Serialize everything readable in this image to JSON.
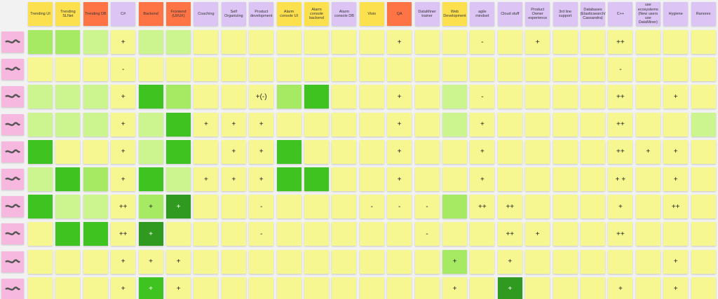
{
  "header": {
    "columns": [
      {
        "label": "Trending UI",
        "color": "#fde04e"
      },
      {
        "label": "Trending SLNet",
        "color": "#fde04e"
      },
      {
        "label": "Trending DB",
        "color": "#ff7445"
      },
      {
        "label": "C#",
        "color": "#dcc4f5"
      },
      {
        "label": "Backend",
        "color": "#ff7445"
      },
      {
        "label": "Frontend (UI/UX)",
        "color": "#ff7445"
      },
      {
        "label": "Coaching",
        "color": "#dcc4f5"
      },
      {
        "label": "Self Organizing",
        "color": "#dcc4f5"
      },
      {
        "label": "Product development",
        "color": "#dcc4f5"
      },
      {
        "label": "Alarm console UI",
        "color": "#fde04e"
      },
      {
        "label": "Alarm console backend",
        "color": "#fde04e"
      },
      {
        "label": "Alarm console DB",
        "color": "#dcc4f5"
      },
      {
        "label": "Visio",
        "color": "#fde04e"
      },
      {
        "label": "QA",
        "color": "#ff7445"
      },
      {
        "label": "DataMiner trainer",
        "color": "#dcc4f5"
      },
      {
        "label": "Web Development",
        "color": "#fde04e"
      },
      {
        "label": "agile mindset",
        "color": "#dcc4f5"
      },
      {
        "label": "Cloud stuff",
        "color": "#dcc4f5"
      },
      {
        "label": "Product Owner experience",
        "color": "#dcc4f5"
      },
      {
        "label": "3rd line support",
        "color": "#dcc4f5"
      },
      {
        "label": "Databases (Elasticsearch/ Cassandra)",
        "color": "#dcc4f5"
      },
      {
        "label": "C++",
        "color": "#dcc4f5"
      },
      {
        "label": "use ecosystems (New users use DataMiner)",
        "color": "#dcc4f5"
      },
      {
        "label": "Hygiene",
        "color": "#dcc4f5"
      },
      {
        "label": "Ranorex",
        "color": "#dcc4f5"
      }
    ]
  },
  "table": {
    "rows": [
      [
        {
          "color": "#a6ea63"
        },
        {
          "color": "#a6ea63"
        },
        {
          "color": "#cdf58f"
        },
        {
          "color": "#f6f790",
          "text": "+"
        },
        {
          "color": "#cdf58f"
        },
        {
          "color": "#cdf58f"
        },
        {
          "color": "#f6f790"
        },
        {
          "color": "#f6f790"
        },
        {
          "color": "#f6f790"
        },
        {
          "color": "#f6f790"
        },
        {
          "color": "#f6f790"
        },
        {
          "color": "#f6f790"
        },
        {
          "color": "#f6f790"
        },
        {
          "color": "#f6f790",
          "text": "+"
        },
        {
          "color": "#f6f790"
        },
        {
          "color": "#f6f790"
        },
        {
          "color": "#f6f790",
          "text": "-"
        },
        {
          "color": "#f6f790"
        },
        {
          "color": "#f6f790",
          "text": "+"
        },
        {
          "color": "#f6f790"
        },
        {
          "color": "#f6f790"
        },
        {
          "color": "#f6f790",
          "text": "++"
        },
        {
          "color": "#f6f790"
        },
        {
          "color": "#f6f790"
        },
        {
          "color": "#f6f790"
        }
      ],
      [
        {
          "color": "#f6f790"
        },
        {
          "color": "#f6f790"
        },
        {
          "color": "#f6f790"
        },
        {
          "color": "#f6f790",
          "text": "-"
        },
        {
          "color": "#f6f790"
        },
        {
          "color": "#f6f790"
        },
        {
          "color": "#f6f790"
        },
        {
          "color": "#f6f790"
        },
        {
          "color": "#f6f790"
        },
        {
          "color": "#f6f790"
        },
        {
          "color": "#f6f790"
        },
        {
          "color": "#f6f790"
        },
        {
          "color": "#f6f790"
        },
        {
          "color": "#f6f790"
        },
        {
          "color": "#f6f790"
        },
        {
          "color": "#f6f790"
        },
        {
          "color": "#f6f790"
        },
        {
          "color": "#f6f790"
        },
        {
          "color": "#f6f790"
        },
        {
          "color": "#f6f790"
        },
        {
          "color": "#f6f790"
        },
        {
          "color": "#f6f790",
          "text": "-"
        },
        {
          "color": "#f6f790"
        },
        {
          "color": "#f6f790"
        },
        {
          "color": "#f6f790"
        }
      ],
      [
        {
          "color": "#cdf58f"
        },
        {
          "color": "#cdf58f"
        },
        {
          "color": "#cdf58f"
        },
        {
          "color": "#f6f790",
          "text": "+"
        },
        {
          "color": "#3ec320"
        },
        {
          "color": "#a6ea63"
        },
        {
          "color": "#f6f790"
        },
        {
          "color": "#f6f790"
        },
        {
          "color": "#f6f790",
          "text": "+(-)"
        },
        {
          "color": "#a6ea63"
        },
        {
          "color": "#3ec320"
        },
        {
          "color": "#f6f790"
        },
        {
          "color": "#f6f790"
        },
        {
          "color": "#f6f790",
          "text": "+"
        },
        {
          "color": "#f6f790"
        },
        {
          "color": "#cdf58f"
        },
        {
          "color": "#f6f790",
          "text": "-"
        },
        {
          "color": "#f6f790"
        },
        {
          "color": "#f6f790"
        },
        {
          "color": "#f6f790"
        },
        {
          "color": "#f6f790"
        },
        {
          "color": "#f6f790",
          "text": "++"
        },
        {
          "color": "#f6f790"
        },
        {
          "color": "#f6f790",
          "text": "+"
        },
        {
          "color": "#f6f790"
        }
      ],
      [
        {
          "color": "#cdf58f"
        },
        {
          "color": "#cdf58f"
        },
        {
          "color": "#cdf58f"
        },
        {
          "color": "#f6f790",
          "text": "+"
        },
        {
          "color": "#cdf58f"
        },
        {
          "color": "#3ec320"
        },
        {
          "color": "#f6f790",
          "text": "+"
        },
        {
          "color": "#f6f790",
          "text": "+"
        },
        {
          "color": "#f6f790",
          "text": "+"
        },
        {
          "color": "#f6f790"
        },
        {
          "color": "#f6f790"
        },
        {
          "color": "#f6f790"
        },
        {
          "color": "#f6f790"
        },
        {
          "color": "#f6f790",
          "text": "+"
        },
        {
          "color": "#f6f790"
        },
        {
          "color": "#cdf58f"
        },
        {
          "color": "#f6f790",
          "text": "+"
        },
        {
          "color": "#f6f790"
        },
        {
          "color": "#f6f790"
        },
        {
          "color": "#f6f790"
        },
        {
          "color": "#f6f790"
        },
        {
          "color": "#f6f790",
          "text": "++"
        },
        {
          "color": "#f6f790"
        },
        {
          "color": "#f6f790"
        },
        {
          "color": "#cdf58f"
        }
      ],
      [
        {
          "color": "#3ec320"
        },
        {
          "color": "#f6f790"
        },
        {
          "color": "#f6f790"
        },
        {
          "color": "#f6f790",
          "text": "+"
        },
        {
          "color": "#cdf58f"
        },
        {
          "color": "#3ec320"
        },
        {
          "color": "#f6f790"
        },
        {
          "color": "#f6f790",
          "text": "+"
        },
        {
          "color": "#f6f790",
          "text": "+"
        },
        {
          "color": "#3ec320"
        },
        {
          "color": "#f6f790"
        },
        {
          "color": "#f6f790"
        },
        {
          "color": "#f6f790"
        },
        {
          "color": "#f6f790",
          "text": "+"
        },
        {
          "color": "#f6f790"
        },
        {
          "color": "#f6f790"
        },
        {
          "color": "#f6f790",
          "text": "+"
        },
        {
          "color": "#f6f790"
        },
        {
          "color": "#f6f790"
        },
        {
          "color": "#f6f790"
        },
        {
          "color": "#f6f790"
        },
        {
          "color": "#f6f790",
          "text": "++"
        },
        {
          "color": "#f6f790",
          "text": "+"
        },
        {
          "color": "#f6f790",
          "text": "+"
        },
        {
          "color": "#f6f790"
        }
      ],
      [
        {
          "color": "#cdf58f"
        },
        {
          "color": "#3ec320"
        },
        {
          "color": "#a6ea63"
        },
        {
          "color": "#f6f790",
          "text": "+"
        },
        {
          "color": "#3ec320"
        },
        {
          "color": "#cdf58f"
        },
        {
          "color": "#f6f790",
          "text": "+"
        },
        {
          "color": "#f6f790",
          "text": "+"
        },
        {
          "color": "#f6f790",
          "text": "+"
        },
        {
          "color": "#3ec320"
        },
        {
          "color": "#3ec320"
        },
        {
          "color": "#f6f790"
        },
        {
          "color": "#f6f790"
        },
        {
          "color": "#f6f790",
          "text": "+"
        },
        {
          "color": "#f6f790"
        },
        {
          "color": "#f6f790"
        },
        {
          "color": "#f6f790",
          "text": "+"
        },
        {
          "color": "#f6f790"
        },
        {
          "color": "#f6f790"
        },
        {
          "color": "#f6f790"
        },
        {
          "color": "#f6f790"
        },
        {
          "color": "#f6f790",
          "text": "+ +"
        },
        {
          "color": "#f6f790"
        },
        {
          "color": "#f6f790",
          "text": "+"
        },
        {
          "color": "#f6f790"
        }
      ],
      [
        {
          "color": "#3ec320"
        },
        {
          "color": "#cdf58f"
        },
        {
          "color": "#cdf58f"
        },
        {
          "color": "#f6f790",
          "text": "++"
        },
        {
          "color": "#a6ea63",
          "text": "+"
        },
        {
          "color": "#2f9a1f",
          "text": "+"
        },
        {
          "color": "#f6f790"
        },
        {
          "color": "#f6f790"
        },
        {
          "color": "#f6f790",
          "text": "-"
        },
        {
          "color": "#f6f790"
        },
        {
          "color": "#f6f790"
        },
        {
          "color": "#f6f790"
        },
        {
          "color": "#f6f790",
          "text": "-"
        },
        {
          "color": "#f6f790",
          "text": "-"
        },
        {
          "color": "#f6f790",
          "text": "-"
        },
        {
          "color": "#a6ea63"
        },
        {
          "color": "#f6f790",
          "text": "++"
        },
        {
          "color": "#f6f790",
          "text": "++"
        },
        {
          "color": "#f6f790"
        },
        {
          "color": "#f6f790"
        },
        {
          "color": "#f6f790"
        },
        {
          "color": "#f6f790",
          "text": "+"
        },
        {
          "color": "#f6f790"
        },
        {
          "color": "#f6f790",
          "text": "++"
        },
        {
          "color": "#f6f790"
        }
      ],
      [
        {
          "color": "#f6f790"
        },
        {
          "color": "#3ec320"
        },
        {
          "color": "#3ec320"
        },
        {
          "color": "#f6f790",
          "text": "++"
        },
        {
          "color": "#2f9a1f",
          "text": "+"
        },
        {
          "color": "#f6f790"
        },
        {
          "color": "#f6f790"
        },
        {
          "color": "#f6f790"
        },
        {
          "color": "#f6f790",
          "text": "-"
        },
        {
          "color": "#f6f790"
        },
        {
          "color": "#f6f790"
        },
        {
          "color": "#f6f790"
        },
        {
          "color": "#f6f790"
        },
        {
          "color": "#f6f790"
        },
        {
          "color": "#f6f790",
          "text": "-"
        },
        {
          "color": "#f6f790"
        },
        {
          "color": "#f6f790"
        },
        {
          "color": "#f6f790",
          "text": "++"
        },
        {
          "color": "#f6f790",
          "text": "+"
        },
        {
          "color": "#f6f790"
        },
        {
          "color": "#f6f790"
        },
        {
          "color": "#f6f790",
          "text": "++"
        },
        {
          "color": "#f6f790"
        },
        {
          "color": "#f6f790"
        },
        {
          "color": "#f6f790"
        }
      ],
      [
        {
          "color": "#f6f790"
        },
        {
          "color": "#f6f790"
        },
        {
          "color": "#f6f790"
        },
        {
          "color": "#f6f790",
          "text": "+"
        },
        {
          "color": "#f6f790",
          "text": "+"
        },
        {
          "color": "#f6f790",
          "text": "+"
        },
        {
          "color": "#f6f790"
        },
        {
          "color": "#f6f790"
        },
        {
          "color": "#f6f790"
        },
        {
          "color": "#f6f790"
        },
        {
          "color": "#f6f790"
        },
        {
          "color": "#f6f790"
        },
        {
          "color": "#f6f790"
        },
        {
          "color": "#f6f790"
        },
        {
          "color": "#f6f790"
        },
        {
          "color": "#a6ea63",
          "text": "+"
        },
        {
          "color": "#f6f790"
        },
        {
          "color": "#f6f790",
          "text": "+"
        },
        {
          "color": "#f6f790"
        },
        {
          "color": "#f6f790"
        },
        {
          "color": "#f6f790"
        },
        {
          "color": "#f6f790"
        },
        {
          "color": "#f6f790"
        },
        {
          "color": "#f6f790",
          "text": "+"
        },
        {
          "color": "#f6f790"
        }
      ],
      [
        {
          "color": "#f6f790"
        },
        {
          "color": "#f6f790"
        },
        {
          "color": "#f6f790"
        },
        {
          "color": "#f6f790",
          "text": "+"
        },
        {
          "color": "#3ec320",
          "text": "+"
        },
        {
          "color": "#f6f790",
          "text": "+"
        },
        {
          "color": "#f6f790"
        },
        {
          "color": "#f6f790"
        },
        {
          "color": "#f6f790"
        },
        {
          "color": "#f6f790"
        },
        {
          "color": "#f6f790"
        },
        {
          "color": "#f6f790"
        },
        {
          "color": "#f6f790"
        },
        {
          "color": "#f6f790"
        },
        {
          "color": "#f6f790"
        },
        {
          "color": "#f6f790",
          "text": "+"
        },
        {
          "color": "#f6f790"
        },
        {
          "color": "#2f9a1f",
          "text": "+"
        },
        {
          "color": "#f6f790"
        },
        {
          "color": "#f6f790"
        },
        {
          "color": "#f6f790"
        },
        {
          "color": "#f6f790",
          "text": "+"
        },
        {
          "color": "#f6f790"
        },
        {
          "color": "#f6f790",
          "text": "+"
        },
        {
          "color": "#f6f790"
        }
      ]
    ]
  }
}
